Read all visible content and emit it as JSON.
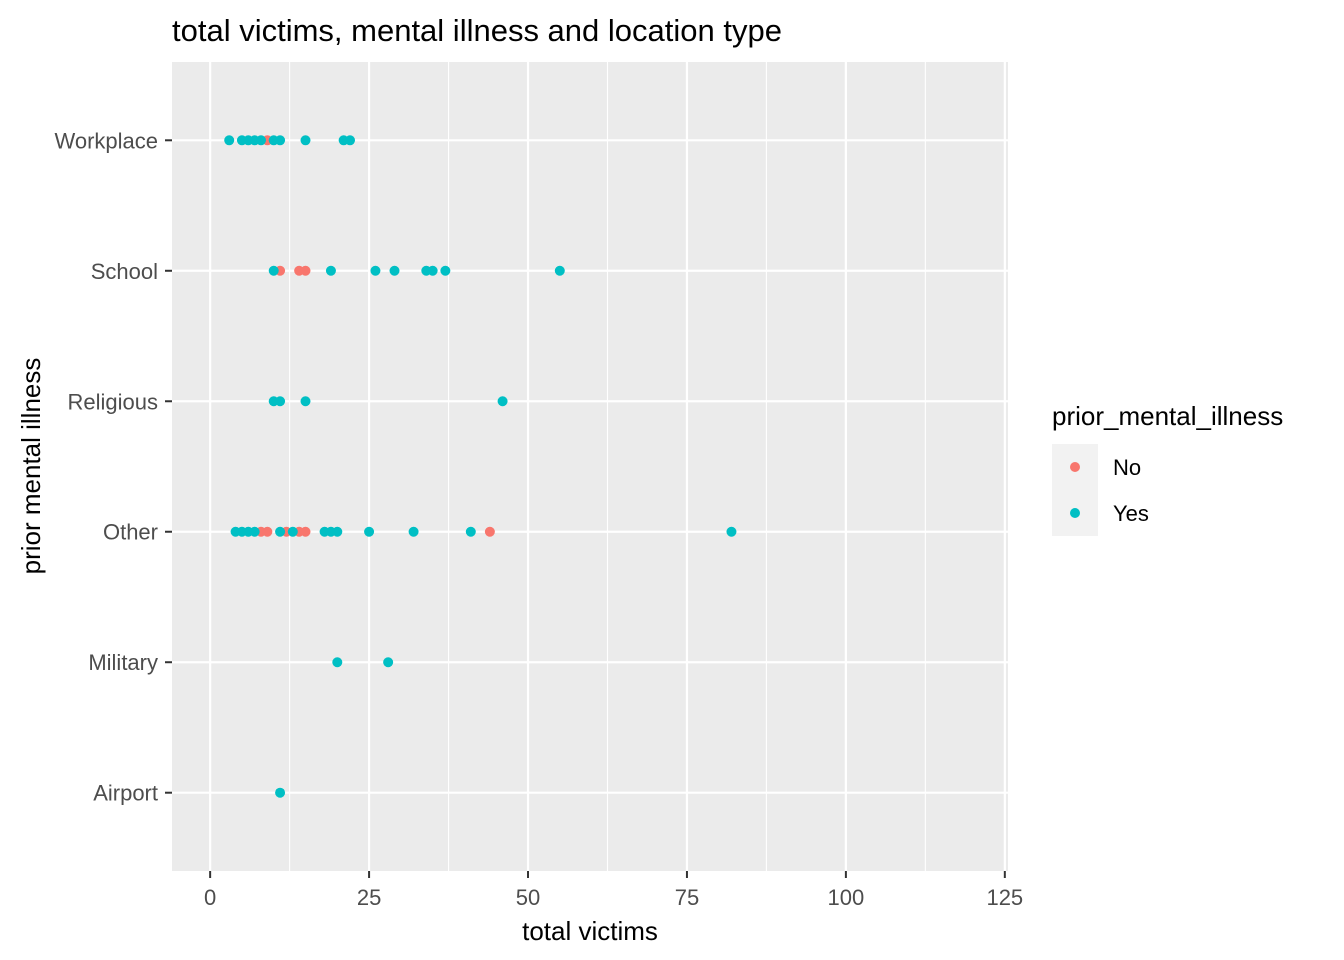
{
  "chart_data": {
    "type": "scatter",
    "title": "total victims, mental illness and location type",
    "xlabel": "total victims",
    "ylabel": "prior mental illness",
    "xlim": [
      -6,
      125.5
    ],
    "x_ticks": [
      0,
      25,
      50,
      75,
      100,
      125
    ],
    "x_tick_labels": [
      "0",
      "25",
      "50",
      "75",
      "100",
      "125"
    ],
    "categories": [
      "Airport",
      "Military",
      "Other",
      "Religious",
      "School",
      "Workplace"
    ],
    "grid": true,
    "legend": {
      "title": "prior_mental_illness",
      "placement": "right",
      "entries": [
        {
          "label": "No",
          "color": "#F8766D"
        },
        {
          "label": "Yes",
          "color": "#00BFC4"
        }
      ]
    },
    "series": [
      {
        "name": "No",
        "color": "#F8766D",
        "points": [
          {
            "x": 9,
            "y": "Workplace"
          },
          {
            "x": 11,
            "y": "School"
          },
          {
            "x": 14,
            "y": "School"
          },
          {
            "x": 15,
            "y": "School"
          },
          {
            "x": 8,
            "y": "Other"
          },
          {
            "x": 9,
            "y": "Other"
          },
          {
            "x": 12,
            "y": "Other"
          },
          {
            "x": 14,
            "y": "Other"
          },
          {
            "x": 15,
            "y": "Other"
          },
          {
            "x": 44,
            "y": "Other"
          }
        ]
      },
      {
        "name": "Yes",
        "color": "#00BFC4",
        "points": [
          {
            "x": 3,
            "y": "Workplace"
          },
          {
            "x": 5,
            "y": "Workplace"
          },
          {
            "x": 6,
            "y": "Workplace"
          },
          {
            "x": 7,
            "y": "Workplace"
          },
          {
            "x": 8,
            "y": "Workplace"
          },
          {
            "x": 10,
            "y": "Workplace"
          },
          {
            "x": 11,
            "y": "Workplace"
          },
          {
            "x": 15,
            "y": "Workplace"
          },
          {
            "x": 21,
            "y": "Workplace"
          },
          {
            "x": 22,
            "y": "Workplace"
          },
          {
            "x": 10,
            "y": "School"
          },
          {
            "x": 19,
            "y": "School"
          },
          {
            "x": 26,
            "y": "School"
          },
          {
            "x": 29,
            "y": "School"
          },
          {
            "x": 34,
            "y": "School"
          },
          {
            "x": 35,
            "y": "School"
          },
          {
            "x": 37,
            "y": "School"
          },
          {
            "x": 55,
            "y": "School"
          },
          {
            "x": 10,
            "y": "Religious"
          },
          {
            "x": 11,
            "y": "Religious"
          },
          {
            "x": 15,
            "y": "Religious"
          },
          {
            "x": 46,
            "y": "Religious"
          },
          {
            "x": 4,
            "y": "Other"
          },
          {
            "x": 5,
            "y": "Other"
          },
          {
            "x": 6,
            "y": "Other"
          },
          {
            "x": 7,
            "y": "Other"
          },
          {
            "x": 11,
            "y": "Other"
          },
          {
            "x": 13,
            "y": "Other"
          },
          {
            "x": 18,
            "y": "Other"
          },
          {
            "x": 19,
            "y": "Other"
          },
          {
            "x": 20,
            "y": "Other"
          },
          {
            "x": 25,
            "y": "Other"
          },
          {
            "x": 32,
            "y": "Other"
          },
          {
            "x": 41,
            "y": "Other"
          },
          {
            "x": 82,
            "y": "Other"
          },
          {
            "x": 20,
            "y": "Military"
          },
          {
            "x": 28,
            "y": "Military"
          },
          {
            "x": 11,
            "y": "Airport"
          }
        ]
      }
    ]
  }
}
